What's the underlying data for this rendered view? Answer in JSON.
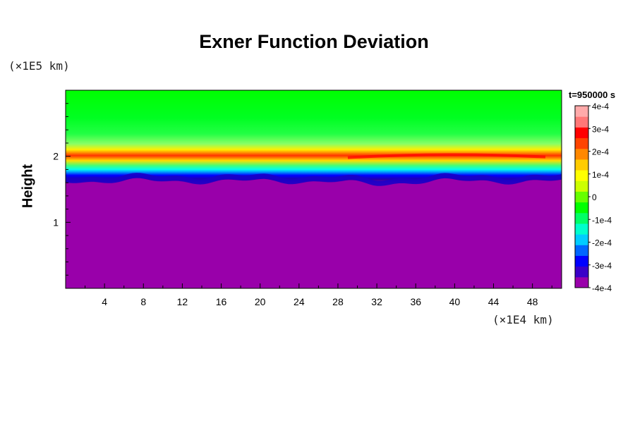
{
  "chart_data": {
    "type": "heatmap",
    "title": "Exner Function Deviation",
    "ylabel": "Height",
    "y_unit_label": "(×1E5 km)",
    "x_unit_label": "(×1E4 km)",
    "time_label": "t=950000 s",
    "x_ticks": [
      "4",
      "8",
      "12",
      "16",
      "20",
      "24",
      "28",
      "32",
      "36",
      "40",
      "44",
      "48"
    ],
    "y_ticks": [
      "1",
      "2"
    ],
    "xlim": [
      0,
      51
    ],
    "ylim": [
      0,
      3
    ],
    "colorbar": {
      "min": -0.0004,
      "max": 0.0004,
      "ticks": [
        "4e-4",
        "3e-4",
        "2e-4",
        "1e-4",
        "0",
        "-1e-4",
        "-2e-4",
        "-3e-4",
        "-4e-4"
      ],
      "colors": [
        "#9900aa",
        "#3a00c8",
        "#0000ff",
        "#0066ff",
        "#00ccff",
        "#00ffcc",
        "#00ff66",
        "#00ff00",
        "#66ff00",
        "#ccff00",
        "#ffff00",
        "#ffcc00",
        "#ff8800",
        "#ff4400",
        "#ff0000",
        "#ff7777",
        "#ffaaaa"
      ]
    },
    "layers": {
      "top_region": "0",
      "high_band_height": 2.0,
      "low_band_height": 1.7,
      "bottom_region": "-4e-4",
      "bottom_region_top": 1.62
    }
  }
}
